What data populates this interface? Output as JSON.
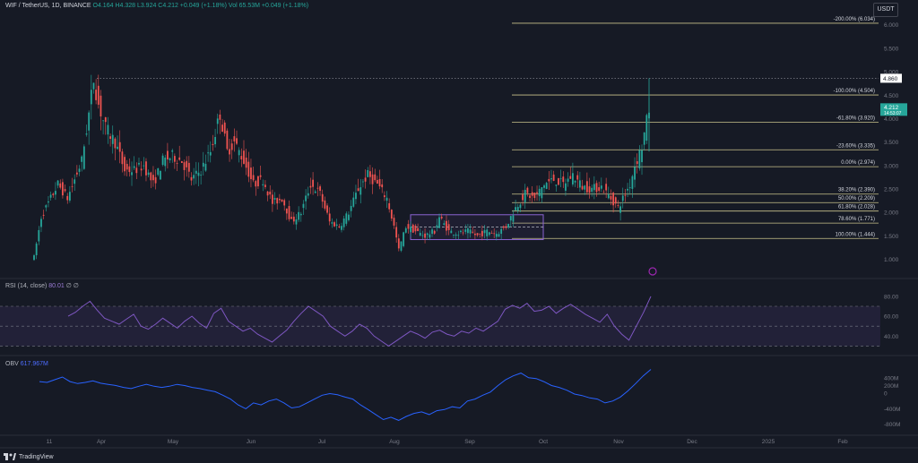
{
  "header": {
    "symbol": "WIF / TetherUS, 1D, BINANCE",
    "ohlc": "O4.164  H4.328  L3.924  C4.212  +0.049 (+1.18%)",
    "volume": "Vol 65.53M  +0.049 (+1.18%)"
  },
  "currency_label": "USDT",
  "rsi_label": "RSI (14, close)",
  "rsi_value": "80.01",
  "rsi_extra": "∅ ∅",
  "obv_label": "OBV",
  "obv_value": "617.967M",
  "logo_text": "TradingView",
  "colors": {
    "background": "#161a25",
    "up": "#26a69a",
    "down": "#ef5350",
    "fib": "#c9c28b",
    "rsi": "#7e57c2",
    "obv": "#2962ff"
  },
  "chart_data": [
    {
      "type": "candlestick",
      "title": "WIF / TetherUS, 1D, BINANCE",
      "ylim": [
        0.8,
        6.3
      ],
      "y_ticks": [
        "1.000",
        "1.500",
        "2.000",
        "2.500",
        "3.000",
        "3.500",
        "4.000",
        "4.500",
        "5.000",
        "5.500",
        "6.000"
      ],
      "x_labels": [
        "11",
        "Apr",
        "May",
        "Jun",
        "Jul",
        "Aug",
        "Sep",
        "Oct",
        "Nov",
        "Dec",
        "2025",
        "Feb"
      ],
      "price_path": [
        [
          0,
          1.05
        ],
        [
          3,
          1.9
        ],
        [
          6,
          2.2
        ],
        [
          10,
          2.6
        ],
        [
          14,
          2.3
        ],
        [
          17,
          2.7
        ],
        [
          20,
          3.1
        ],
        [
          23,
          4.1
        ],
        [
          25,
          4.85
        ],
        [
          27,
          4.3
        ],
        [
          30,
          3.8
        ],
        [
          34,
          3.5
        ],
        [
          38,
          2.9
        ],
        [
          42,
          2.9
        ],
        [
          46,
          3.0
        ],
        [
          50,
          2.6
        ],
        [
          54,
          3.1
        ],
        [
          58,
          3.2
        ],
        [
          62,
          3.1
        ],
        [
          66,
          2.7
        ],
        [
          70,
          2.9
        ],
        [
          74,
          3.3
        ],
        [
          78,
          4.1
        ],
        [
          81,
          3.3
        ],
        [
          84,
          3.5
        ],
        [
          88,
          3.1
        ],
        [
          92,
          2.6
        ],
        [
          96,
          2.7
        ],
        [
          100,
          2.2
        ],
        [
          104,
          2.3
        ],
        [
          108,
          1.8
        ],
        [
          112,
          2.0
        ],
        [
          116,
          2.6
        ],
        [
          120,
          2.4
        ],
        [
          124,
          1.8
        ],
        [
          128,
          1.7
        ],
        [
          132,
          2.0
        ],
        [
          136,
          2.5
        ],
        [
          140,
          2.8
        ],
        [
          144,
          2.6
        ],
        [
          148,
          2.3
        ],
        [
          151,
          1.7
        ],
        [
          153,
          1.2
        ],
        [
          156,
          1.7
        ],
        [
          160,
          1.6
        ],
        [
          164,
          1.5
        ],
        [
          168,
          1.6
        ],
        [
          170,
          1.9
        ],
        [
          174,
          1.6
        ],
        [
          178,
          1.55
        ],
        [
          182,
          1.6
        ],
        [
          186,
          1.5
        ],
        [
          190,
          1.6
        ],
        [
          194,
          1.55
        ],
        [
          198,
          1.7
        ],
        [
          202,
          2.1
        ],
        [
          206,
          2.4
        ],
        [
          210,
          2.3
        ],
        [
          214,
          2.6
        ],
        [
          218,
          2.7
        ],
        [
          222,
          2.6
        ],
        [
          226,
          2.8
        ],
        [
          230,
          2.55
        ],
        [
          234,
          2.5
        ],
        [
          238,
          2.55
        ],
        [
          242,
          2.3
        ],
        [
          245,
          2.1
        ],
        [
          247,
          2.3
        ],
        [
          250,
          2.6
        ],
        [
          252,
          3.0
        ],
        [
          255,
          3.4
        ],
        [
          258,
          4.2
        ]
      ],
      "last_price": "4.212",
      "last_price_sub": "14:53:07",
      "high_marker": "4.860",
      "fib_levels": [
        {
          "label": "-200.00% (6.034)",
          "price": 6.034
        },
        {
          "label": "-100.00% (4.504)",
          "price": 4.504
        },
        {
          "label": "-61.80% (3.920)",
          "price": 3.92
        },
        {
          "label": "-23.60% (3.335)",
          "price": 3.335
        },
        {
          "label": "0.00% (2.974)",
          "price": 2.974
        },
        {
          "label": "38.20% (2.390)",
          "price": 2.39
        },
        {
          "label": "50.00% (2.209)",
          "price": 2.209
        },
        {
          "label": "61.80% (2.028)",
          "price": 2.028
        },
        {
          "label": "78.60% (1.771)",
          "price": 1.771
        },
        {
          "label": "100.00% (1.444)",
          "price": 1.444
        }
      ],
      "range_box": {
        "low": 1.42,
        "high": 1.95,
        "mid": 1.69
      }
    },
    {
      "type": "line",
      "title": "RSI (14, close)",
      "ylim": [
        25,
        88
      ],
      "y_ticks": [
        "80.00",
        "60.00",
        "40.00"
      ],
      "bands": [
        70,
        50,
        30
      ],
      "values": [
        60,
        64,
        70,
        75,
        66,
        58,
        55,
        52,
        57,
        62,
        50,
        47,
        52,
        58,
        53,
        48,
        55,
        60,
        53,
        48,
        63,
        68,
        55,
        50,
        45,
        48,
        42,
        38,
        34,
        40,
        46,
        55,
        63,
        70,
        65,
        60,
        50,
        45,
        40,
        45,
        52,
        48,
        40,
        35,
        30,
        35,
        40,
        45,
        42,
        38,
        44,
        46,
        42,
        40,
        45,
        43,
        48,
        45,
        50,
        55,
        67,
        71,
        68,
        73,
        65,
        66,
        70,
        63,
        68,
        72,
        67,
        62,
        58,
        54,
        62,
        50,
        42,
        36,
        50,
        64,
        80
      ]
    },
    {
      "type": "line",
      "title": "OBV",
      "ylim": [
        -900,
        720
      ],
      "y_ticks": [
        "400M",
        "200M",
        "0",
        "-400M",
        "-800M"
      ],
      "values": [
        300,
        280,
        350,
        420,
        300,
        250,
        280,
        320,
        260,
        230,
        200,
        150,
        120,
        180,
        230,
        180,
        150,
        180,
        230,
        200,
        150,
        120,
        80,
        40,
        -50,
        -150,
        -300,
        -400,
        -250,
        -300,
        -200,
        -150,
        -250,
        -380,
        -350,
        -250,
        -150,
        -50,
        -10,
        -40,
        -100,
        -150,
        -300,
        -420,
        -550,
        -680,
        -620,
        -700,
        -600,
        -520,
        -480,
        -550,
        -450,
        -420,
        -350,
        -380,
        -200,
        -150,
        -50,
        30,
        200,
        350,
        450,
        520,
        400,
        380,
        300,
        200,
        150,
        80,
        -20,
        -60,
        -120,
        -150,
        -250,
        -200,
        -100,
        60,
        250,
        450,
        617
      ]
    }
  ]
}
